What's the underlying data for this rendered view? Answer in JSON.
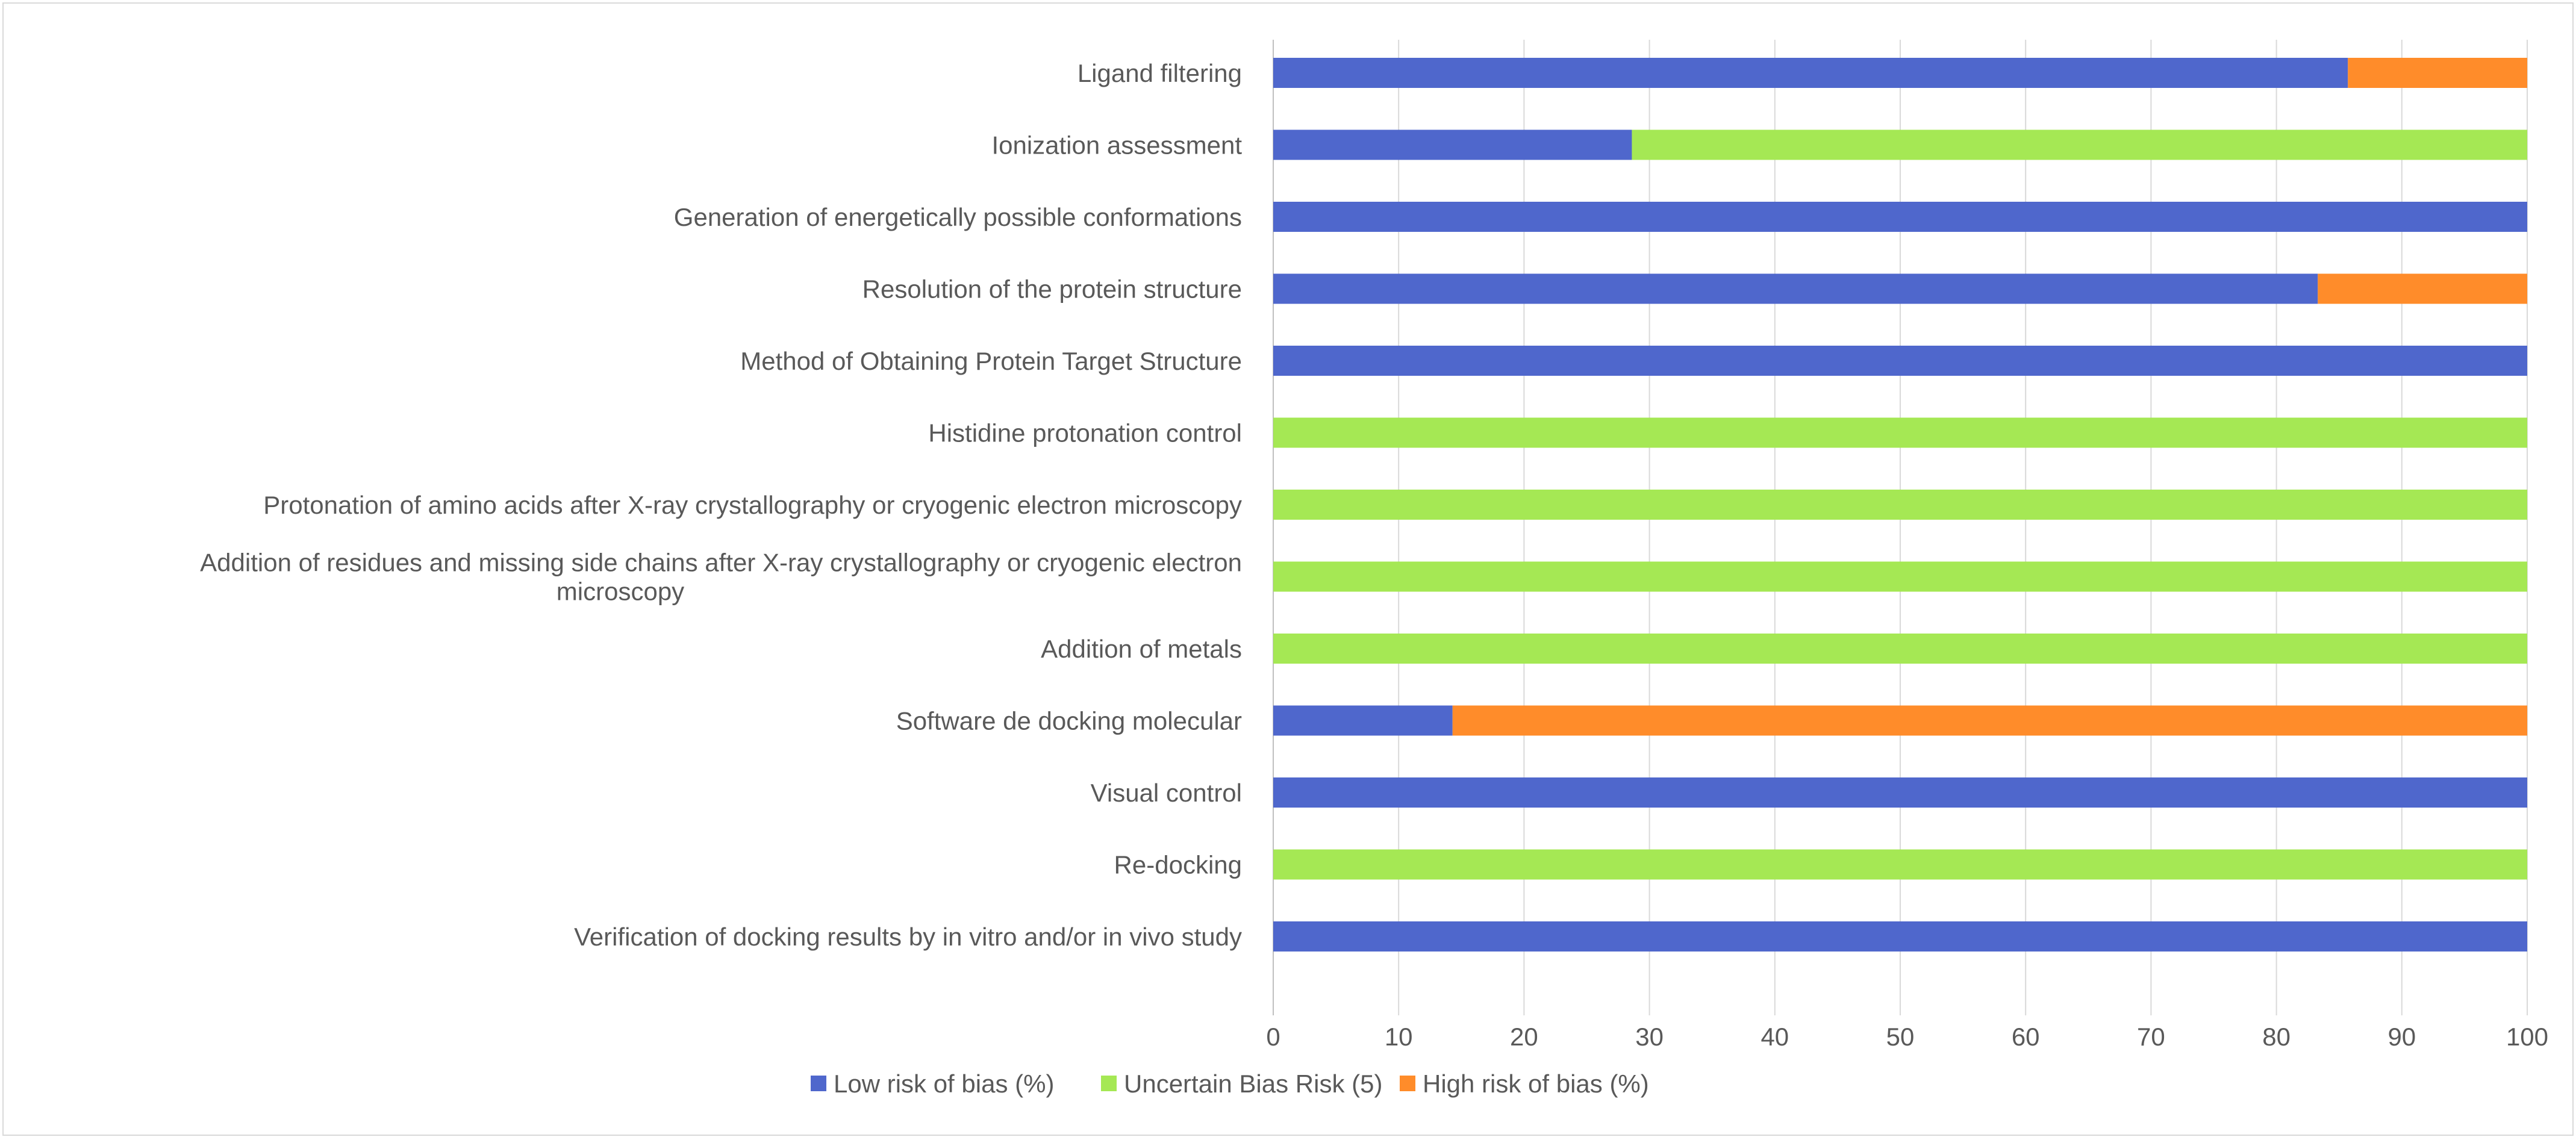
{
  "chart_data": {
    "type": "bar",
    "orientation": "horizontal",
    "stacked": true,
    "title": "",
    "xlabel": "",
    "ylabel": "",
    "xlim": [
      0,
      100
    ],
    "x_ticks": [
      0,
      10,
      20,
      30,
      40,
      50,
      60,
      70,
      80,
      90,
      100
    ],
    "grid": true,
    "legend_position": "bottom",
    "categories": [
      [
        "Ligand filtering"
      ],
      [
        "Ionization assessment"
      ],
      [
        "Generation of energetically possible conformations"
      ],
      [
        "Resolution of the protein structure"
      ],
      [
        "Method of Obtaining Protein Target Structure"
      ],
      [
        "Histidine protonation control"
      ],
      [
        "Protonation of amino acids after X-ray crystallography or cryogenic electron microscopy"
      ],
      [
        "Addition of residues and missing side chains after X-ray crystallography or cryogenic electron",
        "microscopy"
      ],
      [
        "Addition of metals"
      ],
      [
        "Software de docking molecular"
      ],
      [
        "Visual control"
      ],
      [
        "Re-docking"
      ],
      [
        "Verification of docking results by in vitro and/or in vivo study"
      ]
    ],
    "series": [
      {
        "name": "Low risk of bias (%)",
        "color": "#4f67cc",
        "values": [
          85.7,
          28.6,
          100,
          83.3,
          100,
          0,
          0,
          0,
          0,
          14.3,
          100,
          0,
          100
        ]
      },
      {
        "name": "Uncertain Bias Risk (5)",
        "color": "#a5e854",
        "values": [
          0,
          71.4,
          0,
          0,
          0,
          100,
          100,
          100,
          100,
          0,
          0,
          100,
          0
        ]
      },
      {
        "name": "High risk of bias (%)",
        "color": "#ff8c2a",
        "values": [
          14.3,
          0,
          0,
          16.7,
          0,
          0,
          0,
          0,
          0,
          85.7,
          0,
          0,
          0
        ]
      }
    ]
  }
}
